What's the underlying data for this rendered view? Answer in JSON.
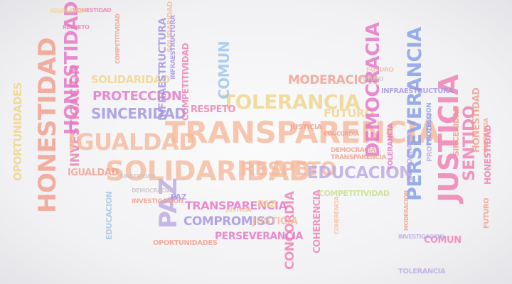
{
  "palette": {
    "peach": "#f6b89a",
    "salmon": "#f29a88",
    "pink": "#f07ab0",
    "magenta": "#e56fc4",
    "lavender": "#b9a6e2",
    "violet": "#9f8fe0",
    "blue": "#7f9ae8",
    "sky": "#9cc3ec",
    "yellow": "#eed488",
    "lime": "#c6dd84",
    "grey": "#c9c2c6"
  },
  "words": [
    {
      "text": "HONESTIDAD",
      "color": "salmon"
    },
    {
      "text": "OPORTUNIDADES",
      "color": "yellow"
    },
    {
      "text": "INVESTIGACION",
      "color": "pink"
    },
    {
      "text": "IGUALDAD",
      "color": "peach"
    },
    {
      "text": "HONESTIDAD",
      "color": "magenta"
    },
    {
      "text": "TRANSPARENCIA",
      "color": "peach"
    },
    {
      "text": "SOLIDARIDAD",
      "color": "peach"
    },
    {
      "text": "RESPETO",
      "color": "peach"
    },
    {
      "text": "TOLERANCIA",
      "color": "yellow"
    },
    {
      "text": "MODERACION",
      "color": "salmon"
    },
    {
      "text": "FUTURO",
      "color": "yellow"
    },
    {
      "text": "SOLIDARIDAD",
      "color": "yellow"
    },
    {
      "text": "PROTECCION",
      "color": "magenta"
    },
    {
      "text": "SINCERIDAD",
      "color": "violet"
    },
    {
      "text": "INFRAESTRUCTURA",
      "color": "violet"
    },
    {
      "text": "COMPETITIVIDAD",
      "color": "pink"
    },
    {
      "text": "COMUN",
      "color": "sky"
    },
    {
      "text": "RESPETO",
      "color": "pink"
    },
    {
      "text": "DEMOCRACIA",
      "color": "magenta"
    },
    {
      "text": "EDUCACION",
      "color": "lavender"
    },
    {
      "text": "PERSEVERANCIA",
      "color": "blue"
    },
    {
      "text": "JUSTICIA",
      "color": "pink"
    },
    {
      "text": "SENTIDO",
      "color": "pink"
    },
    {
      "text": "HONESTIDAD",
      "color": "salmon"
    },
    {
      "text": "SINCERIDAD",
      "color": "salmon"
    },
    {
      "text": "CONCORDIA",
      "color": "pink"
    },
    {
      "text": "COHERENCIA",
      "color": "pink"
    },
    {
      "text": "TRANSPARENCIA",
      "color": "magenta"
    },
    {
      "text": "COMPROMISO",
      "color": "violet"
    },
    {
      "text": "JUSTICIA",
      "color": "peach"
    },
    {
      "text": "PERSEVERANCIA",
      "color": "magenta"
    },
    {
      "text": "PAZ",
      "color": "lavender"
    },
    {
      "text": "PAZ",
      "color": "yellow"
    },
    {
      "text": "IGUALDAD",
      "color": "salmon"
    },
    {
      "text": "OPORTUNIDADES",
      "color": "salmon"
    },
    {
      "text": "INVESTIGACION",
      "color": "salmon"
    },
    {
      "text": "EDUCACION",
      "color": "sky"
    },
    {
      "text": "COMPETITIVIDAD",
      "color": "lime"
    },
    {
      "text": "INFRAESTRUCTURA",
      "color": "violet"
    },
    {
      "text": "TOLERANCIA",
      "color": "magenta"
    },
    {
      "text": "COMUN",
      "color": "pink"
    },
    {
      "text": "FUTURO",
      "color": "salmon"
    },
    {
      "text": "DEMOCRACIA",
      "color": "lavender"
    },
    {
      "text": "PROTECCION",
      "color": "lavender"
    },
    {
      "text": "TOLERANCIA",
      "color": "lavender"
    },
    {
      "text": "INVESTIGACION",
      "color": "lavender"
    },
    {
      "text": "FUTURO",
      "color": "peach"
    },
    {
      "text": "HONESTIDAD",
      "color": "pink"
    },
    {
      "text": "HONESTIDAD",
      "color": "pink"
    },
    {
      "text": "RESPETO",
      "color": "pink"
    },
    {
      "text": "JUSTICIA",
      "color": "salmon"
    },
    {
      "text": "SOLIDARIDAD",
      "color": "peach"
    },
    {
      "text": "INFRAESTRUCTURA",
      "color": "violet"
    },
    {
      "text": "COMPETITIVIDAD",
      "color": "salmon"
    },
    {
      "text": "COHERENCIA",
      "color": "peach"
    },
    {
      "text": "COHERENCIA",
      "color": "salmon"
    },
    {
      "text": "IGUALDAD",
      "color": "yellow"
    },
    {
      "text": "PAZ",
      "color": "violet"
    },
    {
      "text": "DEMOCRACIA",
      "color": "salmon"
    },
    {
      "text": "TRANSPARENCIA",
      "color": "salmon"
    },
    {
      "text": "JUSTICIA",
      "color": "peach"
    },
    {
      "text": "MODERACION",
      "color": "salmon"
    },
    {
      "text": "CONCORDIA",
      "color": "salmon"
    },
    {
      "text": "FUTURO",
      "color": "grey"
    },
    {
      "text": "PROTECCION",
      "color": "blue"
    },
    {
      "text": "DEMOCRACIA",
      "color": "grey"
    },
    {
      "text": "SINCERIDAD",
      "color": "grey"
    }
  ]
}
